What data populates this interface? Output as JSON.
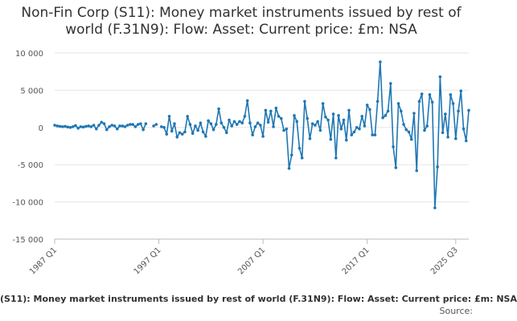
{
  "chart_data": {
    "type": "line",
    "title": "Non-Fin Corp (S11): Money market instruments issued by rest of world (F.31N9): Flow: Asset: Current price: £m: NSA",
    "series_name": "Non-Fin Corp (S11): Money market instruments issued by rest of world (F.31N9): Flow: Asset: Current price: £m: NSA",
    "legend_label": "(S11): Money market instruments issued by rest of world (F.31N9): Flow: Asset: Current price: £m: NSA",
    "source_label": "Source:",
    "xlabel": "",
    "ylabel": "",
    "ylim": [
      -15000,
      10000
    ],
    "y_ticks": [
      10000,
      5000,
      0,
      -5000,
      -10000,
      -15000
    ],
    "y_tick_labels": [
      "10 000",
      "5 000",
      "0",
      "-5 000",
      "-10 000",
      "-15 000"
    ],
    "x_start": "1987 Q1",
    "x_end": "2025 Q3",
    "x_tick_labels": [
      {
        "label": "1987 Q1",
        "index": 0
      },
      {
        "label": "1997 Q1",
        "index": 40
      },
      {
        "label": "2007 Q1",
        "index": 80
      },
      {
        "label": "2017 Q1",
        "index": 120
      },
      {
        "label": "2025 Q3",
        "index": 154
      }
    ],
    "line_color": "#1f77b4",
    "grid": true,
    "values": [
      300,
      200,
      150,
      100,
      150,
      50,
      0,
      100,
      250,
      -100,
      100,
      50,
      150,
      200,
      100,
      300,
      -200,
      300,
      700,
      500,
      -300,
      100,
      300,
      200,
      -200,
      200,
      200,
      100,
      300,
      400,
      400,
      100,
      400,
      500,
      -300,
      500,
      null,
      null,
      200,
      400,
      null,
      100,
      0,
      -900,
      1500,
      -500,
      500,
      -1300,
      -700,
      -900,
      -600,
      1500,
      400,
      -800,
      200,
      -400,
      600,
      -600,
      -1200,
      900,
      500,
      -300,
      400,
      2500,
      600,
      0,
      -700,
      1000,
      200,
      800,
      400,
      800,
      600,
      1500,
      3600,
      600,
      -1000,
      100,
      600,
      300,
      -1200,
      2300,
      700,
      2200,
      100,
      2600,
      1500,
      1200,
      -400,
      -200,
      -5500,
      -3700,
      1600,
      800,
      -2800,
      -4100,
      3500,
      1200,
      -1500,
      500,
      300,
      800,
      -400,
      3200,
      1400,
      1000,
      -1600,
      1800,
      -4100,
      1600,
      -200,
      1000,
      -1700,
      2300,
      -1000,
      -600,
      0,
      -200,
      1500,
      200,
      3000,
      2400,
      -1000,
      -1000,
      3500,
      8800,
      1300,
      1600,
      2200,
      5900,
      -2600,
      -5400,
      3200,
      2200,
      400,
      -300,
      -600,
      -1600,
      1900,
      -5800,
      3500,
      4500,
      -400,
      200,
      4400,
      3400,
      -10800,
      -5300,
      6800,
      -700,
      1800,
      -1300,
      4400,
      3200,
      -1500,
      2200,
      4900,
      -200,
      -1800,
      2300
    ]
  }
}
